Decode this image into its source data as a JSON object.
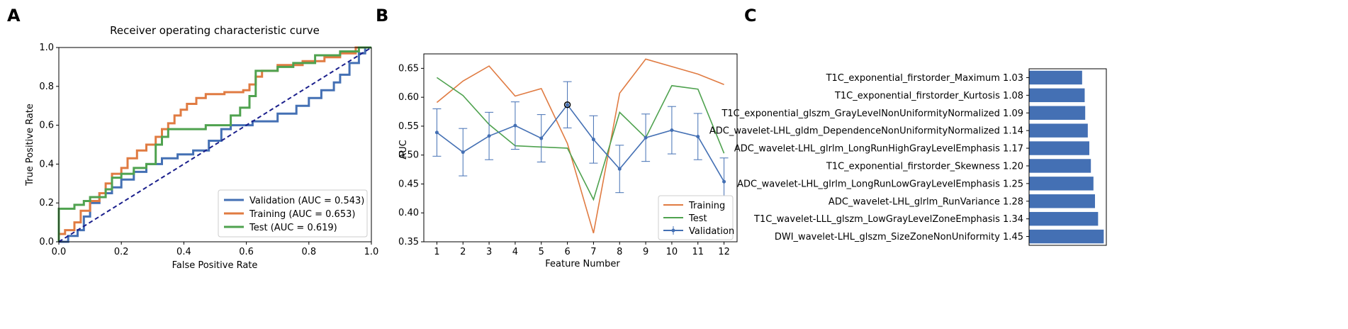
{
  "panel_labels": [
    "A",
    "B",
    "C"
  ],
  "chart_data": [
    {
      "panel": "A",
      "type": "line",
      "title": "Receiver operating characteristic curve",
      "xlabel": "False Positive Rate",
      "ylabel": "True Positive Rate",
      "xlim": [
        0,
        1
      ],
      "ylim": [
        0,
        1
      ],
      "xticks": [
        "0.0",
        "0.2",
        "0.4",
        "0.6",
        "0.8",
        "1.0"
      ],
      "yticks": [
        "0.0",
        "0.2",
        "0.4",
        "0.6",
        "0.8",
        "1.0"
      ],
      "grid": false,
      "legend_position": "bottom-right",
      "diagonal_reference": true,
      "series": [
        {
          "name": "Validation (AUC = 0.543)",
          "color": "#4470b4",
          "points": [
            [
              0,
              0
            ],
            [
              0.03,
              0
            ],
            [
              0.03,
              0.03
            ],
            [
              0.06,
              0.03
            ],
            [
              0.06,
              0.06
            ],
            [
              0.08,
              0.06
            ],
            [
              0.08,
              0.13
            ],
            [
              0.1,
              0.13
            ],
            [
              0.1,
              0.2
            ],
            [
              0.13,
              0.2
            ],
            [
              0.13,
              0.25
            ],
            [
              0.17,
              0.25
            ],
            [
              0.17,
              0.28
            ],
            [
              0.2,
              0.28
            ],
            [
              0.2,
              0.32
            ],
            [
              0.24,
              0.32
            ],
            [
              0.24,
              0.36
            ],
            [
              0.28,
              0.36
            ],
            [
              0.28,
              0.4
            ],
            [
              0.33,
              0.4
            ],
            [
              0.33,
              0.43
            ],
            [
              0.38,
              0.43
            ],
            [
              0.38,
              0.45
            ],
            [
              0.43,
              0.45
            ],
            [
              0.43,
              0.47
            ],
            [
              0.48,
              0.47
            ],
            [
              0.48,
              0.52
            ],
            [
              0.52,
              0.52
            ],
            [
              0.52,
              0.58
            ],
            [
              0.55,
              0.58
            ],
            [
              0.55,
              0.6
            ],
            [
              0.62,
              0.6
            ],
            [
              0.62,
              0.62
            ],
            [
              0.7,
              0.62
            ],
            [
              0.7,
              0.66
            ],
            [
              0.76,
              0.66
            ],
            [
              0.76,
              0.7
            ],
            [
              0.8,
              0.7
            ],
            [
              0.8,
              0.74
            ],
            [
              0.84,
              0.74
            ],
            [
              0.84,
              0.78
            ],
            [
              0.88,
              0.78
            ],
            [
              0.88,
              0.82
            ],
            [
              0.9,
              0.82
            ],
            [
              0.9,
              0.86
            ],
            [
              0.93,
              0.86
            ],
            [
              0.93,
              0.92
            ],
            [
              0.96,
              0.92
            ],
            [
              0.96,
              0.97
            ],
            [
              0.98,
              0.97
            ],
            [
              0.98,
              1.0
            ],
            [
              1.0,
              1.0
            ]
          ]
        },
        {
          "name": "Training (AUC = 0.653)",
          "color": "#e07b42",
          "points": [
            [
              0,
              0
            ],
            [
              0,
              0.04
            ],
            [
              0.02,
              0.04
            ],
            [
              0.02,
              0.06
            ],
            [
              0.05,
              0.06
            ],
            [
              0.05,
              0.1
            ],
            [
              0.07,
              0.1
            ],
            [
              0.07,
              0.16
            ],
            [
              0.1,
              0.16
            ],
            [
              0.1,
              0.21
            ],
            [
              0.13,
              0.21
            ],
            [
              0.13,
              0.25
            ],
            [
              0.15,
              0.25
            ],
            [
              0.15,
              0.3
            ],
            [
              0.17,
              0.3
            ],
            [
              0.17,
              0.35
            ],
            [
              0.2,
              0.35
            ],
            [
              0.2,
              0.38
            ],
            [
              0.22,
              0.38
            ],
            [
              0.22,
              0.43
            ],
            [
              0.25,
              0.43
            ],
            [
              0.25,
              0.47
            ],
            [
              0.28,
              0.47
            ],
            [
              0.28,
              0.5
            ],
            [
              0.31,
              0.5
            ],
            [
              0.31,
              0.54
            ],
            [
              0.33,
              0.54
            ],
            [
              0.33,
              0.58
            ],
            [
              0.35,
              0.58
            ],
            [
              0.35,
              0.61
            ],
            [
              0.37,
              0.61
            ],
            [
              0.37,
              0.65
            ],
            [
              0.39,
              0.65
            ],
            [
              0.39,
              0.68
            ],
            [
              0.41,
              0.68
            ],
            [
              0.41,
              0.71
            ],
            [
              0.44,
              0.71
            ],
            [
              0.44,
              0.74
            ],
            [
              0.47,
              0.74
            ],
            [
              0.47,
              0.76
            ],
            [
              0.53,
              0.76
            ],
            [
              0.53,
              0.77
            ],
            [
              0.59,
              0.77
            ],
            [
              0.59,
              0.78
            ],
            [
              0.61,
              0.78
            ],
            [
              0.61,
              0.81
            ],
            [
              0.63,
              0.81
            ],
            [
              0.63,
              0.85
            ],
            [
              0.65,
              0.85
            ],
            [
              0.65,
              0.88
            ],
            [
              0.7,
              0.88
            ],
            [
              0.7,
              0.91
            ],
            [
              0.78,
              0.91
            ],
            [
              0.78,
              0.93
            ],
            [
              0.85,
              0.93
            ],
            [
              0.85,
              0.95
            ],
            [
              0.9,
              0.95
            ],
            [
              0.9,
              0.97
            ],
            [
              0.95,
              0.97
            ],
            [
              0.95,
              1.0
            ],
            [
              1.0,
              1.0
            ]
          ]
        },
        {
          "name": "Test (AUC = 0.619)",
          "color": "#4fa24f",
          "points": [
            [
              0,
              0
            ],
            [
              0,
              0.08
            ],
            [
              0,
              0.17
            ],
            [
              0.05,
              0.17
            ],
            [
              0.05,
              0.19
            ],
            [
              0.08,
              0.19
            ],
            [
              0.08,
              0.21
            ],
            [
              0.1,
              0.21
            ],
            [
              0.1,
              0.23
            ],
            [
              0.15,
              0.23
            ],
            [
              0.15,
              0.27
            ],
            [
              0.17,
              0.27
            ],
            [
              0.17,
              0.33
            ],
            [
              0.2,
              0.33
            ],
            [
              0.2,
              0.35
            ],
            [
              0.24,
              0.35
            ],
            [
              0.24,
              0.38
            ],
            [
              0.28,
              0.38
            ],
            [
              0.28,
              0.4
            ],
            [
              0.31,
              0.4
            ],
            [
              0.31,
              0.5
            ],
            [
              0.33,
              0.5
            ],
            [
              0.33,
              0.54
            ],
            [
              0.35,
              0.54
            ],
            [
              0.35,
              0.58
            ],
            [
              0.47,
              0.58
            ],
            [
              0.47,
              0.6
            ],
            [
              0.55,
              0.6
            ],
            [
              0.55,
              0.65
            ],
            [
              0.58,
              0.65
            ],
            [
              0.58,
              0.69
            ],
            [
              0.61,
              0.69
            ],
            [
              0.61,
              0.75
            ],
            [
              0.63,
              0.75
            ],
            [
              0.63,
              0.88
            ],
            [
              0.7,
              0.88
            ],
            [
              0.7,
              0.9
            ],
            [
              0.75,
              0.9
            ],
            [
              0.75,
              0.92
            ],
            [
              0.82,
              0.92
            ],
            [
              0.82,
              0.96
            ],
            [
              0.9,
              0.96
            ],
            [
              0.9,
              0.98
            ],
            [
              0.96,
              0.98
            ],
            [
              0.96,
              1.0
            ],
            [
              1.0,
              1.0
            ]
          ]
        }
      ]
    },
    {
      "panel": "B",
      "type": "line",
      "title": "",
      "xlabel": "Feature Number",
      "ylabel": "AUC",
      "x": [
        1,
        2,
        3,
        4,
        5,
        6,
        7,
        8,
        9,
        10,
        11,
        12
      ],
      "xlim": [
        0.5,
        12.5
      ],
      "ylim": [
        0.35,
        0.675
      ],
      "yticks": [
        "0.35",
        "0.40",
        "0.45",
        "0.50",
        "0.55",
        "0.60",
        "0.65"
      ],
      "grid": false,
      "legend_position": "bottom-right",
      "highlighted_point": {
        "x": 6,
        "y": 0.587
      },
      "series": [
        {
          "name": "Training",
          "color": "#e07b42",
          "values": [
            0.591,
            0.628,
            0.654,
            0.602,
            0.615,
            0.52,
            0.365,
            0.607,
            0.666,
            0.653,
            0.64,
            0.622
          ]
        },
        {
          "name": "Test",
          "color": "#4fa24f",
          "values": [
            0.634,
            0.603,
            0.553,
            0.516,
            0.514,
            0.512,
            0.423,
            0.574,
            0.53,
            0.62,
            0.614,
            0.503
          ]
        },
        {
          "name": "Validation",
          "color": "#4470b4",
          "values": [
            0.539,
            0.505,
            0.533,
            0.551,
            0.529,
            0.587,
            0.527,
            0.476,
            0.53,
            0.543,
            0.532,
            0.454
          ],
          "error": [
            0.041,
            0.041,
            0.041,
            0.041,
            0.041,
            0.04,
            0.041,
            0.041,
            0.041,
            0.041,
            0.04,
            0.041
          ]
        }
      ]
    },
    {
      "panel": "C",
      "type": "bar",
      "orientation": "horizontal",
      "title": "",
      "bar_color": "#4470b4",
      "xlim": [
        0,
        1.5
      ],
      "categories": [
        "T1C_exponential_firstorder_Maximum 1.03",
        "T1C_exponential_firstorder_Kurtosis 1.08",
        "T1C_exponential_glszm_GrayLevelNonUniformityNormalized 1.09",
        "ADC_wavelet-LHL_gldm_DependenceNonUniformityNormalized 1.14",
        "ADC_wavelet-LHL_glrlm_LongRunHighGrayLevelEmphasis 1.17",
        "T1C_exponential_firstorder_Skewness 1.20",
        "ADC_wavelet-LHL_glrlm_LongRunLowGrayLevelEmphasis 1.25",
        "ADC_wavelet-LHL_glrlm_RunVariance 1.28",
        "T1C_wavelet-LLL_glszm_LowGrayLevelZoneEmphasis 1.34",
        "DWI_wavelet-LHL_glszm_SizeZoneNonUniformity 1.45"
      ],
      "values": [
        1.03,
        1.08,
        1.09,
        1.14,
        1.17,
        1.2,
        1.25,
        1.28,
        1.34,
        1.45
      ]
    }
  ]
}
